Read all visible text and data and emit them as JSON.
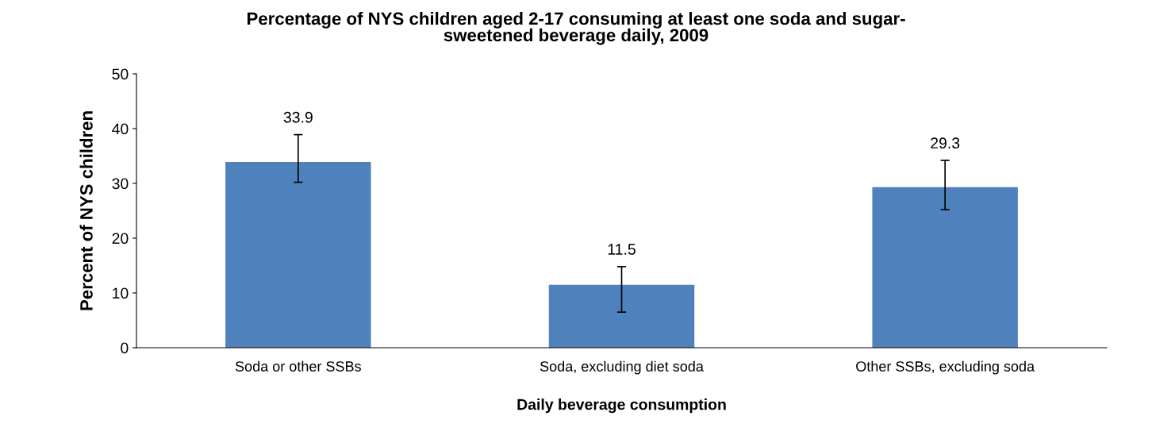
{
  "chart_data": {
    "type": "bar",
    "title": "Percentage of NYS children aged 2-17 consuming at least one soda and sugar-\nsweetened beverage daily, 2009",
    "xlabel": "Daily beverage consumption",
    "ylabel": "Percent of NYS children",
    "categories": [
      "Soda or other SSBs",
      "Soda, excluding diet soda",
      "Other SSBs, excluding soda"
    ],
    "values": [
      33.9,
      11.5,
      29.3
    ],
    "errors": [
      [
        30.2,
        38.9
      ],
      [
        6.5,
        14.8
      ],
      [
        25.2,
        34.2
      ]
    ],
    "color": "#4f81bd",
    "ylim": [
      0,
      50
    ],
    "yticks": [
      0,
      10,
      20,
      30,
      40,
      50
    ],
    "grid": false,
    "data_labels": true
  }
}
